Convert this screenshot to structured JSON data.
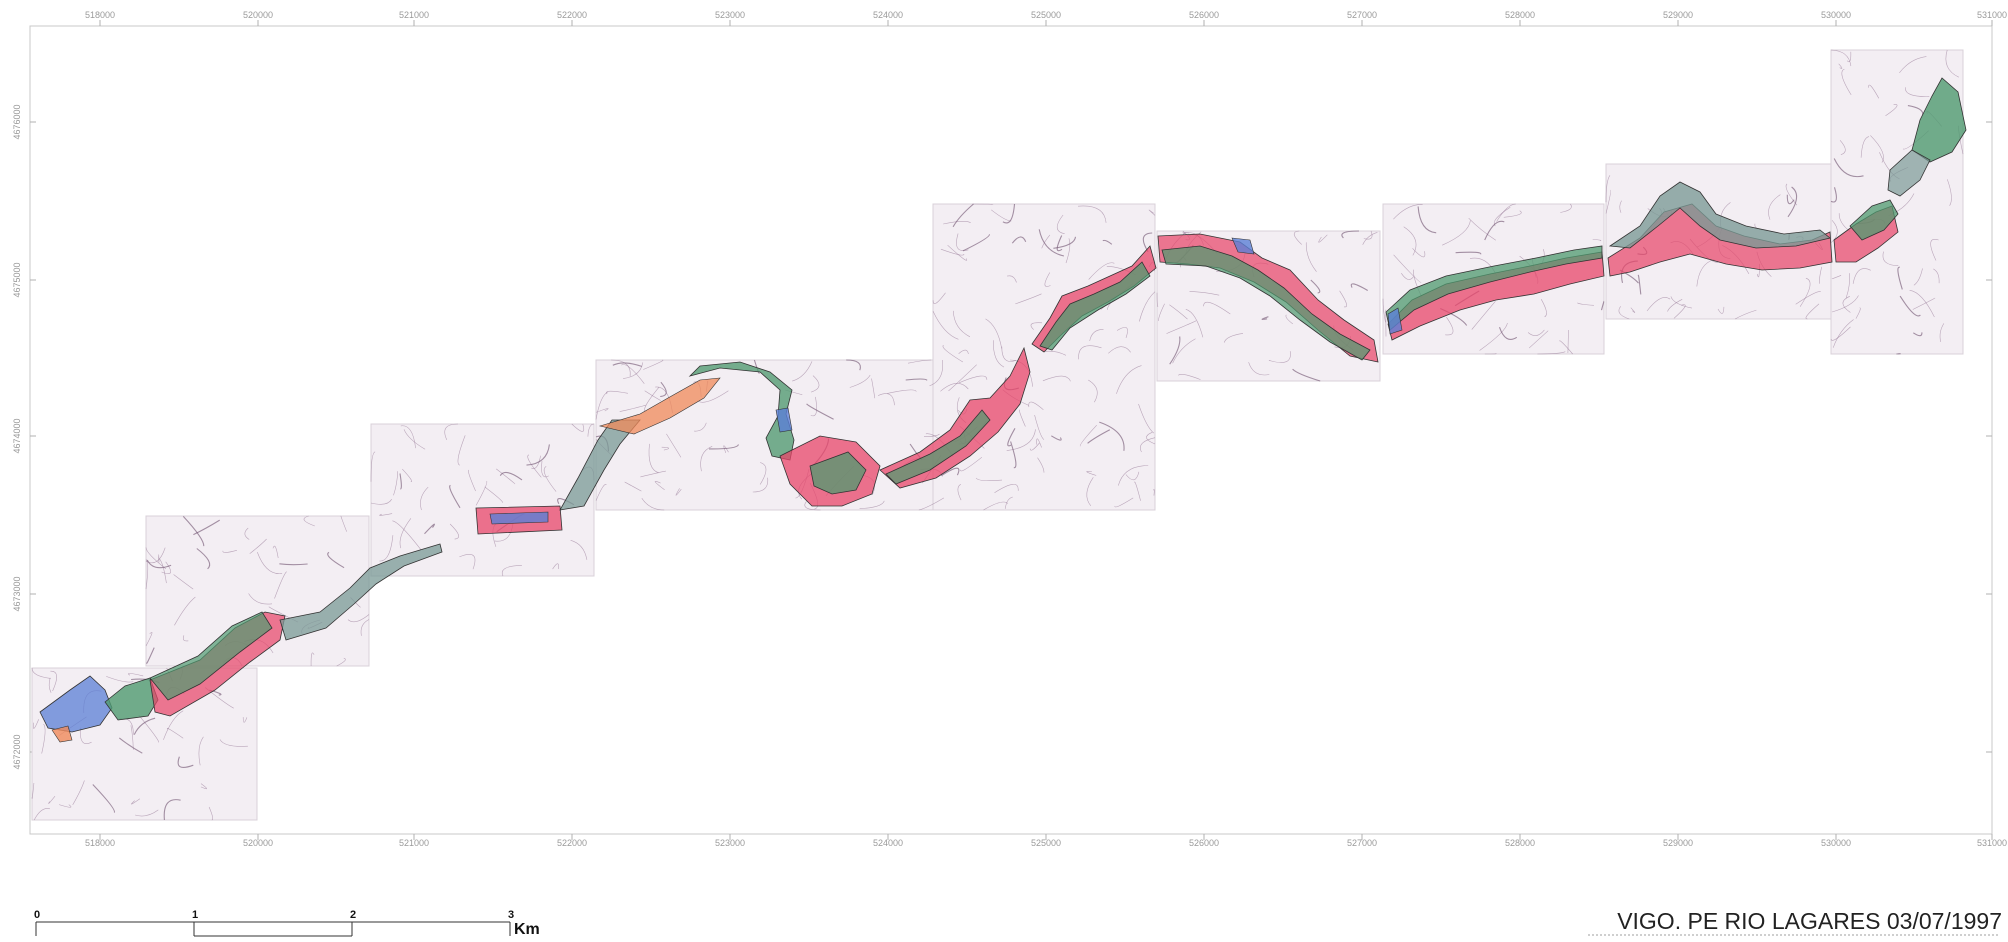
{
  "map": {
    "x_ticks": [
      "518000",
      "520000",
      "521000",
      "522000",
      "523000",
      "524000",
      "525000",
      "526000",
      "527000",
      "528000",
      "529000",
      "530000",
      "531000"
    ],
    "y_ticks": [
      "4676000",
      "4675000",
      "4674000",
      "4673000",
      "4672000"
    ],
    "scale_bar": {
      "labels": [
        "0",
        "1",
        "2",
        "3"
      ],
      "unit": "Km"
    },
    "title": "VIGO. PE RIO LAGARES 03/07/1997",
    "colors": {
      "red_zone": "#e8466a",
      "green_zone": "#4f9a6f",
      "blue_zone": "#5b7fd6",
      "orange_zone": "#f08a5a",
      "grey_zone": "#7a9a95"
    }
  }
}
